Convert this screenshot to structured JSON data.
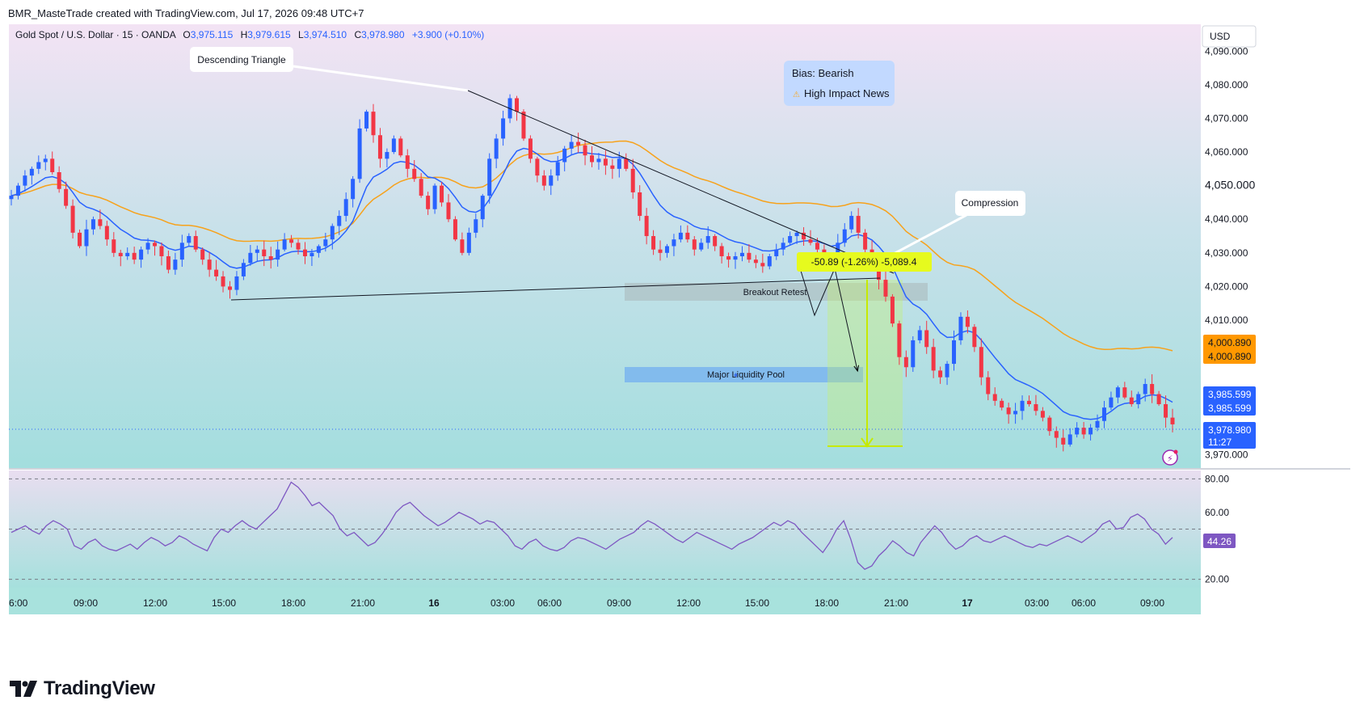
{
  "header": {
    "credit": "BMR_MasteTrade created with TradingView.com, Jul 17, 2026 09:48 UTC+7"
  },
  "legend": {
    "symbol": "Gold Spot / U.S. Dollar · 15 · OANDA",
    "o_label": "O",
    "o_value": "3,975.115",
    "h_label": "H",
    "h_value": "3,979.615",
    "l_label": "L",
    "l_value": "3,974.510",
    "c_label": "C",
    "c_value": "3,978.980",
    "change": "+3.900 (+0.10%)"
  },
  "currency_button": "USD",
  "annotations": {
    "descending_triangle": "Descending Triangle",
    "compression": "Compression",
    "breakout_retest": "Breakout Retest",
    "major_liquidity_pool": "Major Liquidity Pool",
    "bias": "Bias: Bearish",
    "high_impact_news": "High Impact News",
    "measure": "-50.89 (-1.26%) -5,089.4"
  },
  "price_badges": {
    "ma200_a": "4,000.890",
    "ma200_b": "4,000.890",
    "ema_a": "3,985.599",
    "ema_b": "3,985.599",
    "last": "3,978.980",
    "countdown": "11:27",
    "rsi": "44.26"
  },
  "colors": {
    "up": "#2962ff",
    "down": "#f23645",
    "ema": "#2962ff",
    "ma": "#f7a21b",
    "rsi": "#7e57c2",
    "badge_ma": "#ff9800",
    "badge_ema": "#2962ff",
    "badge_rsi": "#7e57c2"
  },
  "footer": {
    "brand": "TradingView"
  },
  "chart_data": {
    "type": "candlestick",
    "title": "Gold Spot / U.S. Dollar · 15 · OANDA",
    "y_ticks": [
      4090,
      4080,
      4070,
      4060,
      4050,
      4040,
      4030,
      4020,
      4010,
      3970
    ],
    "y_tick_labels": [
      "4,090.000",
      "4,080.000",
      "4,070.000",
      "4,060.000",
      "4,050.000",
      "4,040.000",
      "4,030.000",
      "4,020.000",
      "4,010.000",
      "3,970.000"
    ],
    "ylim": [
      3966,
      4098
    ],
    "x_ticks": [
      "6:00",
      "09:00",
      "12:00",
      "15:00",
      "18:00",
      "21:00",
      "16",
      "03:00",
      "06:00",
      "09:00",
      "12:00",
      "15:00",
      "18:00",
      "21:00",
      "17",
      "03:00",
      "06:00",
      "09:00"
    ],
    "close_path": [
      4047,
      4050,
      4053,
      4055,
      4057,
      4058,
      4054,
      4049,
      4044,
      4036,
      4032,
      4037,
      4040,
      4038,
      4034,
      4030,
      4029,
      4030,
      4028,
      4031,
      4033,
      4032,
      4029,
      4025,
      4028,
      4033,
      4035,
      4031,
      4028,
      4025,
      4023,
      4020,
      4019,
      4023,
      4027,
      4030,
      4031,
      4029,
      4028,
      4031,
      4034,
      4033,
      4031,
      4029,
      4030,
      4032,
      4034,
      4038,
      4041,
      4046,
      4052,
      4067,
      4072,
      4065,
      4058,
      4060,
      4064,
      4059,
      4055,
      4052,
      4047,
      4043,
      4050,
      4045,
      4040,
      4034,
      4030,
      4036,
      4040,
      4047,
      4058,
      4064,
      4070,
      4076,
      4072,
      4064,
      4058,
      4053,
      4050,
      4053,
      4057,
      4061,
      4063,
      4062,
      4059,
      4057,
      4058,
      4056,
      4055,
      4058,
      4055,
      4048,
      4041,
      4035,
      4031,
      4030,
      4032,
      4034,
      4036,
      4034,
      4031,
      4033,
      4035,
      4032,
      4029,
      4028,
      4029,
      4030,
      4028,
      4027,
      4026,
      4029,
      4031,
      4033,
      4035,
      4036,
      4034,
      4033,
      4031,
      4029,
      4027,
      4033,
      4037,
      4041,
      4036,
      4031,
      4028,
      4022,
      4017,
      4009,
      3999,
      3996,
      4004,
      4007,
      4002,
      3995,
      3993,
      3997,
      4004,
      4011,
      4008,
      4002,
      3993,
      3988,
      3986,
      3984,
      3982,
      3983,
      3986,
      3985,
      3983,
      3981,
      3977,
      3975,
      3973,
      3976,
      3978,
      3976,
      3978,
      3980,
      3984,
      3987,
      3990,
      3987,
      3985,
      3988,
      3991,
      3988,
      3985,
      3981,
      3979
    ],
    "ema_last": 3985.599,
    "ma_last": 4000.89,
    "last_close": 3978.98,
    "rsi": {
      "ylim": [
        15,
        85
      ],
      "y_ticks": [
        80,
        60,
        20
      ],
      "y_tick_labels": [
        "80.00",
        "60.00",
        "20.00"
      ],
      "levels": [
        80,
        50,
        20
      ],
      "last": 44.26,
      "values": [
        48,
        50,
        52,
        49,
        47,
        52,
        55,
        53,
        50,
        40,
        38,
        42,
        44,
        40,
        38,
        37,
        39,
        41,
        38,
        42,
        45,
        43,
        40,
        42,
        46,
        44,
        41,
        39,
        37,
        45,
        50,
        48,
        52,
        55,
        52,
        50,
        54,
        58,
        62,
        70,
        78,
        75,
        70,
        64,
        66,
        62,
        58,
        50,
        46,
        48,
        44,
        40,
        42,
        47,
        53,
        60,
        64,
        66,
        62,
        58,
        55,
        52,
        54,
        57,
        60,
        58,
        56,
        53,
        55,
        54,
        50,
        46,
        40,
        38,
        42,
        44,
        40,
        38,
        37,
        39,
        43,
        45,
        44,
        42,
        40,
        38,
        41,
        44,
        46,
        48,
        52,
        55,
        53,
        50,
        47,
        44,
        42,
        45,
        48,
        46,
        44,
        42,
        40,
        38,
        41,
        43,
        45,
        48,
        51,
        54,
        52,
        55,
        53,
        48,
        44,
        40,
        36,
        42,
        50,
        55,
        44,
        30,
        26,
        28,
        34,
        38,
        43,
        40,
        36,
        34,
        42,
        47,
        52,
        48,
        42,
        38,
        40,
        44,
        46,
        43,
        42,
        44,
        46,
        44,
        42,
        40,
        39,
        41,
        40,
        42,
        44,
        46,
        44,
        42,
        45,
        48,
        53,
        55,
        50,
        51,
        57,
        59,
        56,
        50,
        47,
        41,
        45
      ]
    }
  }
}
